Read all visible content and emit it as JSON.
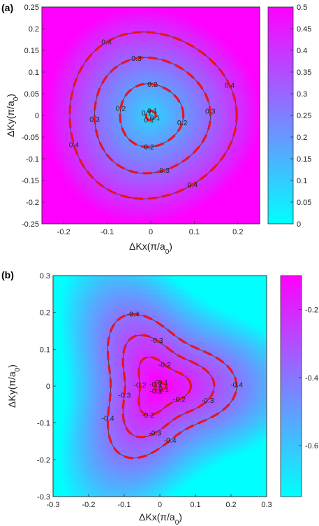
{
  "chart_data": [
    {
      "type": "contour",
      "panel_label": "(a)",
      "xlabel": "ΔKx(π/a0)",
      "ylabel": "ΔKy(π/a0)",
      "xlim": [
        -0.25,
        0.25
      ],
      "ylim": [
        -0.25,
        0.25
      ],
      "xticks": [
        "-0.2",
        "-0.1",
        "0",
        "0.1",
        "0.2"
      ],
      "yticks": [
        "0.25",
        "0.2",
        "0.15",
        "0.1",
        "0.05",
        "0",
        "-0.05",
        "-0.1",
        "-0.15",
        "-0.2",
        "-0.25"
      ],
      "colorbar": {
        "min": 0,
        "max": 0.5,
        "ticks": [
          "0.5",
          "0.45",
          "0.4",
          "0.35",
          "0.3",
          "0.25",
          "0.2",
          "0.15",
          "0.1",
          "0.05",
          "0"
        ]
      },
      "colormap": [
        "#00ffff",
        "#ff00ff"
      ],
      "contour_levels": [
        0.1,
        0.2,
        0.3,
        0.4
      ],
      "contour_labels": [
        "0.1",
        "0.2",
        "0.3",
        "0.4"
      ],
      "dashed_color": "#e8141e"
    },
    {
      "type": "contour",
      "panel_label": "(b)",
      "xlabel": "ΔKx(π/a0)",
      "ylabel": "ΔKy(π/a0)",
      "xlim": [
        -0.3,
        0.3
      ],
      "ylim": [
        -0.3,
        0.3
      ],
      "xticks": [
        "-0.3",
        "-0.2",
        "-0.1",
        "0",
        "0.1",
        "0.2",
        "0.3"
      ],
      "yticks": [
        "0.3",
        "0.2",
        "0.1",
        "0",
        "-0.1",
        "-0.2",
        "-0.3"
      ],
      "colorbar": {
        "min": -0.75,
        "max": -0.1,
        "ticks": [
          "-0.2",
          "-0.4",
          "-0.6"
        ]
      },
      "colormap": [
        "#00ffff",
        "#ff00ff"
      ],
      "contour_levels": [
        -0.1,
        -0.2,
        -0.3,
        -0.4
      ],
      "contour_labels": [
        "-0.1",
        "-0.2",
        "-0.3",
        "-0.4"
      ],
      "dashed_color": "#e8141e"
    }
  ]
}
